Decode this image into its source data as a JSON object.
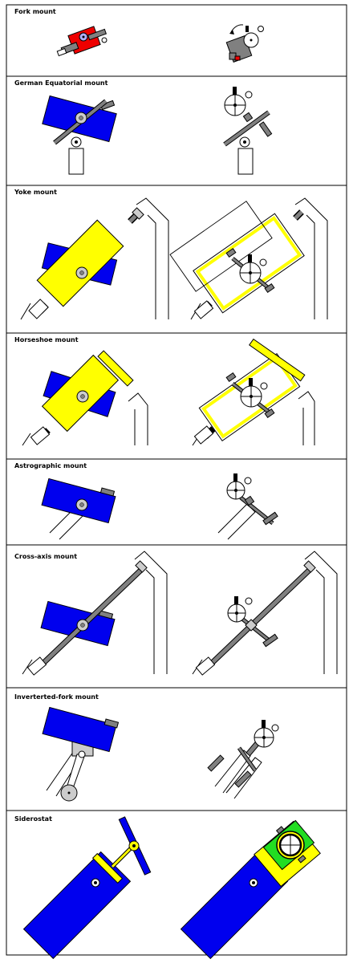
{
  "panels": [
    {
      "title": "Fork mount"
    },
    {
      "title": "German Equatorial mount"
    },
    {
      "title": "Yoke mount"
    },
    {
      "title": "Horseshoe mount"
    },
    {
      "title": "Astrographic mount"
    },
    {
      "title": "Cross-axis mount"
    },
    {
      "title": "Inverterted-fork mount"
    },
    {
      "title": "Siderostat"
    }
  ],
  "colors": {
    "tube": "#0000ee",
    "yoke": "#ffff00",
    "shaft": "#808080",
    "fork_tube": "#ee0000",
    "mirror_bg": "#22dd22",
    "frame": "#000000",
    "background": "#ffffff"
  }
}
